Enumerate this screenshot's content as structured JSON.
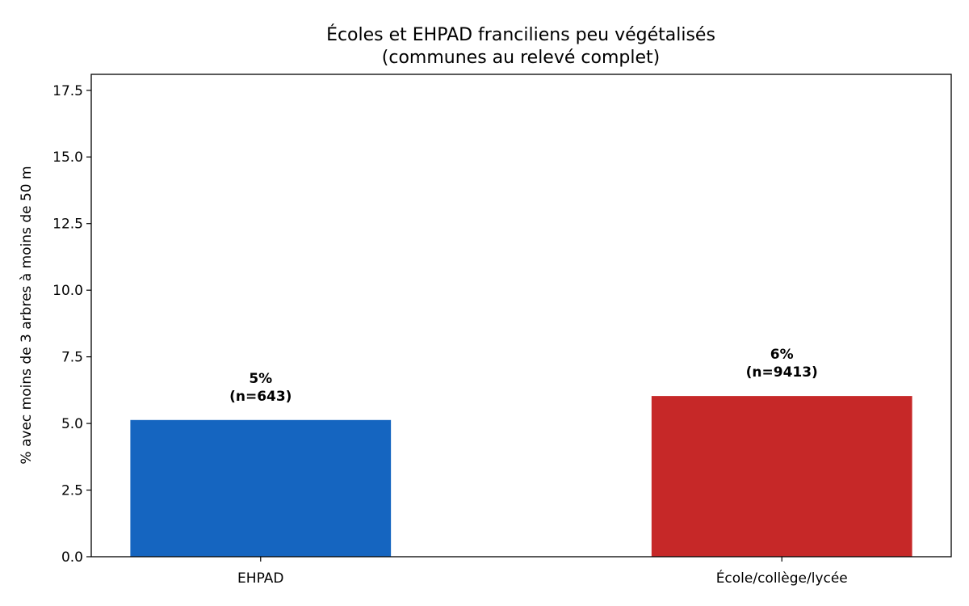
{
  "chart_data": {
    "type": "bar",
    "title_lines": [
      "Écoles et EHPAD franciliens peu végétalisés",
      "(communes au relevé complet)"
    ],
    "xlabel": "",
    "ylabel": "% avec moins de 3 arbres à moins de 50 m",
    "categories": [
      "EHPAD",
      "École/collège/lycée"
    ],
    "values": [
      5.13,
      6.03
    ],
    "colors": [
      "#1565c0",
      "#c62828"
    ],
    "bar_labels": [
      [
        "5%",
        "(n=643)"
      ],
      [
        "6%",
        "(n=9413)"
      ]
    ],
    "ylim": [
      0,
      18.1
    ],
    "yticks": [
      0,
      2.5,
      5,
      7.5,
      10,
      12.5,
      15,
      17.5
    ],
    "ytick_labels": [
      "0.0",
      "2.5",
      "5.0",
      "7.5",
      "10.0",
      "12.5",
      "15.0",
      "17.5"
    ],
    "grid": false,
    "legend": "none"
  }
}
